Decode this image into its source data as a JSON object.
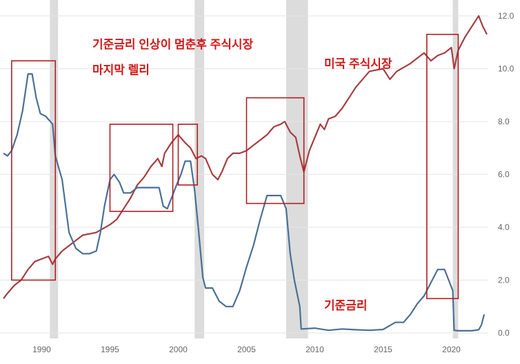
{
  "chart_data": {
    "type": "line",
    "x_ticks": [
      "1990",
      "1995",
      "2000",
      "2005",
      "2010",
      "2015",
      "2020"
    ],
    "y_ticks": [
      "0.0",
      "2.0",
      "4.0",
      "6.0",
      "8.0",
      "10.0",
      "12.0"
    ],
    "ylim": [
      0,
      12
    ],
    "xlim": [
      1987.2,
      2022.6
    ],
    "y_axis_side": "right",
    "grid": "horizontal",
    "recession_shading": [
      [
        1990.6,
        1991.2
      ],
      [
        2001.2,
        2001.9
      ],
      [
        2007.9,
        2009.5
      ],
      [
        2020.1,
        2020.4
      ]
    ],
    "series": [
      {
        "name": "미국 주식시장",
        "color": "#a63d40",
        "x": [
          1987.2,
          1987.5,
          1988.0,
          1988.5,
          1989.0,
          1989.5,
          1990.0,
          1990.5,
          1990.8,
          1991.0,
          1991.5,
          1992.0,
          1993.0,
          1994.0,
          1995.0,
          1995.5,
          1996.0,
          1996.5,
          1997.0,
          1997.5,
          1998.0,
          1998.5,
          1998.8,
          1999.0,
          1999.5,
          2000.0,
          2000.5,
          2000.9,
          2001.3,
          2001.7,
          2002.0,
          2002.5,
          2002.9,
          2003.2,
          2003.6,
          2004.0,
          2004.5,
          2005.0,
          2005.5,
          2006.0,
          2006.5,
          2007.0,
          2007.5,
          2007.8,
          2008.2,
          2008.6,
          2008.9,
          2009.2,
          2009.6,
          2010.0,
          2010.4,
          2010.7,
          2011.0,
          2011.5,
          2012.0,
          2013.0,
          2014.0,
          2015.0,
          2015.5,
          2016.0,
          2017.0,
          2018.0,
          2018.5,
          2019.0,
          2019.5,
          2020.0,
          2020.2,
          2020.5,
          2021.0,
          2021.5,
          2022.0,
          2022.3,
          2022.6
        ],
        "values": [
          1.3,
          1.5,
          1.8,
          2.0,
          2.4,
          2.7,
          2.8,
          2.9,
          2.6,
          2.8,
          3.1,
          3.3,
          3.7,
          3.8,
          4.1,
          4.3,
          4.7,
          5.1,
          5.6,
          5.9,
          6.3,
          6.6,
          6.3,
          6.8,
          7.2,
          7.5,
          7.2,
          7.0,
          6.6,
          6.7,
          6.6,
          6.0,
          5.8,
          6.1,
          6.6,
          6.8,
          6.8,
          6.9,
          7.1,
          7.3,
          7.5,
          7.8,
          7.9,
          8.0,
          7.6,
          7.4,
          6.7,
          6.1,
          6.9,
          7.4,
          7.9,
          7.7,
          8.1,
          8.2,
          8.5,
          9.3,
          9.9,
          10.0,
          9.6,
          9.9,
          10.2,
          10.6,
          10.3,
          10.5,
          10.6,
          10.8,
          10.0,
          10.7,
          11.2,
          11.6,
          12.0,
          11.6,
          11.3
        ]
      },
      {
        "name": "기준금리",
        "color": "#4a6f95",
        "x": [
          1987.2,
          1987.5,
          1987.8,
          1988.2,
          1988.6,
          1989.0,
          1989.3,
          1989.6,
          1989.9,
          1990.3,
          1990.8,
          1991.0,
          1991.5,
          1992.0,
          1992.5,
          1993.0,
          1993.5,
          1994.0,
          1994.3,
          1994.6,
          1995.0,
          1995.3,
          1995.7,
          1996.0,
          1996.5,
          1997.0,
          1998.0,
          1998.6,
          1998.9,
          1999.2,
          1999.5,
          1999.8,
          2000.2,
          2000.5,
          2000.9,
          2001.2,
          2001.5,
          2001.8,
          2002.0,
          2002.5,
          2003.0,
          2003.5,
          2004.0,
          2004.5,
          2005.0,
          2005.5,
          2006.0,
          2006.5,
          2007.0,
          2007.5,
          2007.9,
          2008.2,
          2008.5,
          2008.9,
          2009.0,
          2010.0,
          2011.0,
          2012.0,
          2013.0,
          2014.0,
          2015.0,
          2015.9,
          2016.5,
          2017.0,
          2017.5,
          2018.0,
          2018.5,
          2019.0,
          2019.5,
          2019.8,
          2020.1,
          2020.2,
          2020.5,
          2021.0,
          2021.5,
          2022.0,
          2022.2,
          2022.4
        ],
        "values": [
          6.8,
          6.7,
          6.9,
          7.5,
          8.4,
          9.8,
          9.8,
          8.9,
          8.3,
          8.2,
          7.9,
          6.7,
          5.8,
          3.8,
          3.2,
          3.0,
          3.0,
          3.1,
          3.8,
          4.8,
          5.8,
          6.0,
          5.7,
          5.3,
          5.3,
          5.5,
          5.5,
          5.5,
          4.8,
          4.7,
          5.1,
          5.5,
          6.0,
          6.5,
          6.5,
          5.4,
          3.8,
          2.1,
          1.7,
          1.7,
          1.2,
          1.0,
          1.0,
          1.6,
          2.5,
          3.3,
          4.3,
          5.2,
          5.2,
          5.2,
          4.7,
          3.0,
          2.0,
          1.0,
          0.15,
          0.18,
          0.1,
          0.15,
          0.12,
          0.1,
          0.13,
          0.4,
          0.4,
          0.7,
          1.1,
          1.4,
          1.9,
          2.4,
          2.4,
          2.0,
          1.6,
          0.1,
          0.08,
          0.08,
          0.08,
          0.12,
          0.3,
          0.7
        ]
      }
    ]
  },
  "annotations": {
    "rate_hike_title_line1": "기준금리 인상이 멈춘후 주식시장",
    "rate_hike_title_line2": "마지막 렐리",
    "stock_label": "미국 주식시장",
    "rate_label": "기준금리"
  },
  "colors": {
    "highlight_box": "#b01e23",
    "recession_band": "#dcdcdc",
    "gridline": "#e6e6e6"
  },
  "highlight_periods": [
    {
      "from": 1987.8,
      "to": 1991.0,
      "from_value": 2.0,
      "to_value": 10.3
    },
    {
      "from": 1995.0,
      "to": 1999.6,
      "from_value": 4.6,
      "to_value": 7.9
    },
    {
      "from": 2000.0,
      "to": 2001.4,
      "from_value": 5.6,
      "to_value": 7.9
    },
    {
      "from": 2005.0,
      "to": 2009.2,
      "from_value": 4.9,
      "to_value": 8.9
    },
    {
      "from": 2018.2,
      "to": 2020.5,
      "from_value": 1.3,
      "to_value": 11.3
    }
  ]
}
